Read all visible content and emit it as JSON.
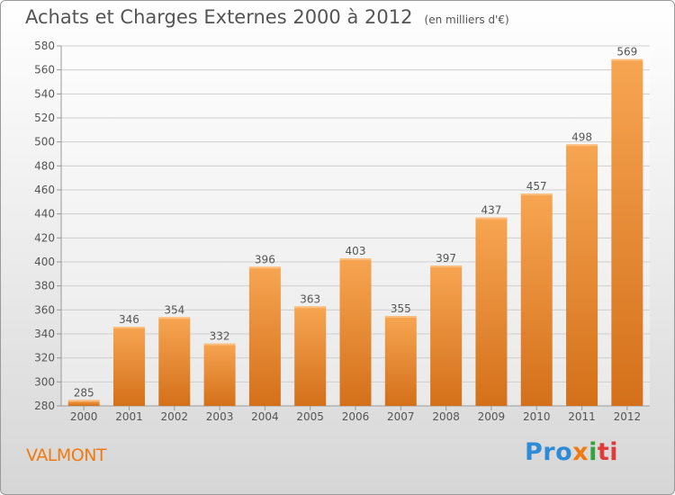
{
  "chart_data": {
    "type": "bar",
    "title": "Achats et Charges Externes 2000 à 2012",
    "subtitle": "(en milliers d'€)",
    "categories": [
      "2000",
      "2001",
      "2002",
      "2003",
      "2004",
      "2005",
      "2006",
      "2007",
      "2008",
      "2009",
      "2010",
      "2011",
      "2012"
    ],
    "values": [
      285,
      346,
      354,
      332,
      396,
      363,
      403,
      355,
      397,
      437,
      457,
      498,
      569
    ],
    "ylim": [
      280,
      580
    ],
    "yticks": [
      280,
      300,
      320,
      340,
      360,
      380,
      400,
      420,
      440,
      460,
      480,
      500,
      520,
      540,
      560,
      580
    ],
    "grid": true,
    "colors": {
      "bar_top": "#f7a552",
      "bar_bottom": "#d4701a",
      "grid": "#cfcfcf",
      "text": "#555555"
    }
  },
  "footer": {
    "commune": "VALMONT",
    "logo": {
      "p1": "Pro",
      "p2": "x",
      "p3": "i",
      "p4": "ti"
    }
  }
}
